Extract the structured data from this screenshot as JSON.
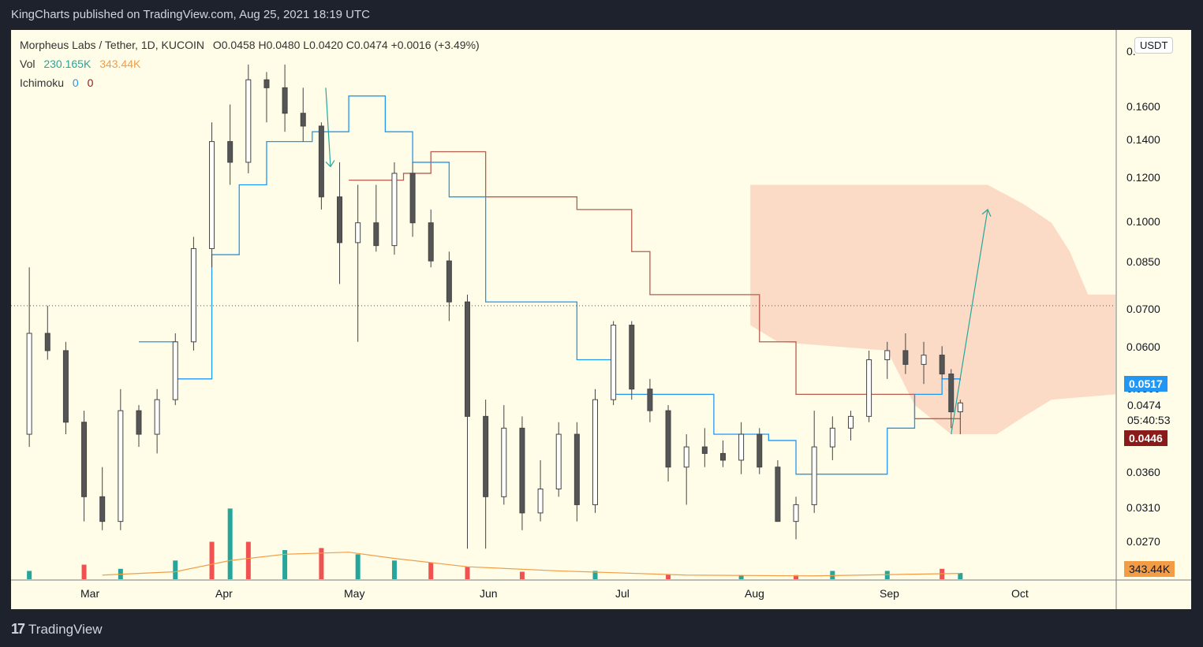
{
  "header": {
    "publisher": "KingCharts published on TradingView.com, Aug 25, 2021 18:19 UTC"
  },
  "legend": {
    "symbol": "Morpheus Labs / Tether, 1D, KUCOIN",
    "ohlc": "O0.0458 H0.0480 L0.0420 C0.0474 +0.0016 (+3.49%)",
    "vol_label": "Vol",
    "vol_value1": "230.165K",
    "vol_value2": "343.44K",
    "ichimoku_label": "Ichimoku",
    "ichimoku_value1": "0",
    "ichimoku_value2": "0"
  },
  "price_axis": {
    "currency": "USDT",
    "top_tick": "0.",
    "ticks": [
      "0.1600",
      "0.1400",
      "0.1200",
      "0.1000",
      "0.0850",
      "0.0700",
      "0.0600",
      "0.0500",
      "0.0360",
      "0.0310",
      "0.0270"
    ],
    "current_price_tag": "0.0517",
    "last_price": "0.0474",
    "countdown": "05:40:53",
    "kijun_tag": "0.0446",
    "volume_tag": "343.44K"
  },
  "time_axis": {
    "labels": [
      "Mar",
      "Apr",
      "May",
      "Jun",
      "Jul",
      "Aug",
      "Sep",
      "Oct"
    ]
  },
  "footer": {
    "brand_mark": "17",
    "brand": "TradingView"
  },
  "colors": {
    "background": "#fffde7",
    "up": "#ffffff",
    "down": "#555555",
    "vol_up": "#26a69a",
    "vol_down": "#ef5350",
    "tenkan": "#2196f3",
    "kijun": "#b85c50",
    "cloud": "#fbd5c0",
    "volume_ma": "#f39c46",
    "price_tag": "#2196f3",
    "kijun_tag": "#8b1a1a",
    "volume_tag": "#f39c46"
  },
  "chart_data": {
    "type": "candlestick",
    "title": "Morpheus Labs / Tether, 1D, KUCOIN",
    "scale": "log",
    "ylim": [
      0.024,
      0.2
    ],
    "x_range": [
      "2021-02-20",
      "2021-10-20"
    ],
    "candles": [
      {
        "date": "2021-02-24",
        "o": 0.042,
        "h": 0.08,
        "l": 0.04,
        "c": 0.062
      },
      {
        "date": "2021-02-28",
        "o": 0.062,
        "h": 0.069,
        "l": 0.056,
        "c": 0.058
      },
      {
        "date": "2021-03-04",
        "o": 0.058,
        "h": 0.06,
        "l": 0.042,
        "c": 0.044
      },
      {
        "date": "2021-03-08",
        "o": 0.044,
        "h": 0.046,
        "l": 0.03,
        "c": 0.033
      },
      {
        "date": "2021-03-12",
        "o": 0.033,
        "h": 0.037,
        "l": 0.029,
        "c": 0.03
      },
      {
        "date": "2021-03-16",
        "o": 0.03,
        "h": 0.05,
        "l": 0.029,
        "c": 0.046
      },
      {
        "date": "2021-03-20",
        "o": 0.046,
        "h": 0.047,
        "l": 0.04,
        "c": 0.042
      },
      {
        "date": "2021-03-24",
        "o": 0.042,
        "h": 0.05,
        "l": 0.039,
        "c": 0.048
      },
      {
        "date": "2021-03-28",
        "o": 0.048,
        "h": 0.062,
        "l": 0.047,
        "c": 0.06
      },
      {
        "date": "2021-04-01",
        "o": 0.06,
        "h": 0.09,
        "l": 0.058,
        "c": 0.086
      },
      {
        "date": "2021-04-05",
        "o": 0.086,
        "h": 0.14,
        "l": 0.08,
        "c": 0.13
      },
      {
        "date": "2021-04-09",
        "o": 0.13,
        "h": 0.15,
        "l": 0.11,
        "c": 0.12
      },
      {
        "date": "2021-04-13",
        "o": 0.12,
        "h": 0.175,
        "l": 0.115,
        "c": 0.165
      },
      {
        "date": "2021-04-17",
        "o": 0.165,
        "h": 0.17,
        "l": 0.14,
        "c": 0.16
      },
      {
        "date": "2021-04-21",
        "o": 0.16,
        "h": 0.175,
        "l": 0.135,
        "c": 0.145
      },
      {
        "date": "2021-04-25",
        "o": 0.145,
        "h": 0.16,
        "l": 0.13,
        "c": 0.138
      },
      {
        "date": "2021-04-29",
        "o": 0.138,
        "h": 0.14,
        "l": 0.1,
        "c": 0.105
      },
      {
        "date": "2021-05-03",
        "o": 0.105,
        "h": 0.12,
        "l": 0.075,
        "c": 0.088
      },
      {
        "date": "2021-05-07",
        "o": 0.088,
        "h": 0.11,
        "l": 0.06,
        "c": 0.095
      },
      {
        "date": "2021-05-11",
        "o": 0.095,
        "h": 0.11,
        "l": 0.085,
        "c": 0.087
      },
      {
        "date": "2021-05-15",
        "o": 0.087,
        "h": 0.12,
        "l": 0.084,
        "c": 0.115
      },
      {
        "date": "2021-05-19",
        "o": 0.115,
        "h": 0.12,
        "l": 0.09,
        "c": 0.095
      },
      {
        "date": "2021-05-23",
        "o": 0.095,
        "h": 0.1,
        "l": 0.08,
        "c": 0.082
      },
      {
        "date": "2021-05-27",
        "o": 0.082,
        "h": 0.085,
        "l": 0.065,
        "c": 0.07
      },
      {
        "date": "2021-05-31",
        "o": 0.07,
        "h": 0.072,
        "l": 0.027,
        "c": 0.045
      },
      {
        "date": "2021-06-04",
        "o": 0.045,
        "h": 0.048,
        "l": 0.027,
        "c": 0.033
      },
      {
        "date": "2021-06-08",
        "o": 0.033,
        "h": 0.047,
        "l": 0.032,
        "c": 0.043
      },
      {
        "date": "2021-06-12",
        "o": 0.043,
        "h": 0.045,
        "l": 0.029,
        "c": 0.031
      },
      {
        "date": "2021-06-16",
        "o": 0.031,
        "h": 0.038,
        "l": 0.03,
        "c": 0.034
      },
      {
        "date": "2021-06-20",
        "o": 0.034,
        "h": 0.044,
        "l": 0.033,
        "c": 0.042
      },
      {
        "date": "2021-06-24",
        "o": 0.042,
        "h": 0.044,
        "l": 0.03,
        "c": 0.032
      },
      {
        "date": "2021-06-28",
        "o": 0.032,
        "h": 0.05,
        "l": 0.031,
        "c": 0.048
      },
      {
        "date": "2021-07-02",
        "o": 0.048,
        "h": 0.065,
        "l": 0.047,
        "c": 0.064
      },
      {
        "date": "2021-07-06",
        "o": 0.064,
        "h": 0.065,
        "l": 0.048,
        "c": 0.05
      },
      {
        "date": "2021-07-10",
        "o": 0.05,
        "h": 0.052,
        "l": 0.044,
        "c": 0.046
      },
      {
        "date": "2021-07-14",
        "o": 0.046,
        "h": 0.047,
        "l": 0.035,
        "c": 0.037
      },
      {
        "date": "2021-07-18",
        "o": 0.037,
        "h": 0.042,
        "l": 0.032,
        "c": 0.04
      },
      {
        "date": "2021-07-22",
        "o": 0.04,
        "h": 0.043,
        "l": 0.037,
        "c": 0.039
      },
      {
        "date": "2021-07-26",
        "o": 0.039,
        "h": 0.041,
        "l": 0.037,
        "c": 0.038
      },
      {
        "date": "2021-07-30",
        "o": 0.038,
        "h": 0.044,
        "l": 0.036,
        "c": 0.042
      },
      {
        "date": "2021-08-03",
        "o": 0.042,
        "h": 0.043,
        "l": 0.036,
        "c": 0.037
      },
      {
        "date": "2021-08-07",
        "o": 0.037,
        "h": 0.038,
        "l": 0.03,
        "c": 0.03
      },
      {
        "date": "2021-08-11",
        "o": 0.03,
        "h": 0.033,
        "l": 0.028,
        "c": 0.032
      },
      {
        "date": "2021-08-15",
        "o": 0.032,
        "h": 0.046,
        "l": 0.031,
        "c": 0.04
      },
      {
        "date": "2021-08-19",
        "o": 0.04,
        "h": 0.045,
        "l": 0.038,
        "c": 0.043
      },
      {
        "date": "2021-08-23",
        "o": 0.043,
        "h": 0.046,
        "l": 0.041,
        "c": 0.045
      },
      {
        "date": "2021-08-27",
        "o": 0.045,
        "h": 0.058,
        "l": 0.044,
        "c": 0.056
      },
      {
        "date": "2021-08-31",
        "o": 0.056,
        "h": 0.06,
        "l": 0.052,
        "c": 0.058
      },
      {
        "date": "2021-09-04",
        "o": 0.058,
        "h": 0.062,
        "l": 0.053,
        "c": 0.055
      },
      {
        "date": "2021-09-08",
        "o": 0.055,
        "h": 0.06,
        "l": 0.051,
        "c": 0.057
      },
      {
        "date": "2021-09-12",
        "o": 0.057,
        "h": 0.059,
        "l": 0.052,
        "c": 0.053
      },
      {
        "date": "2021-09-14",
        "o": 0.053,
        "h": 0.054,
        "l": 0.043,
        "c": 0.0458
      },
      {
        "date": "2021-09-16",
        "o": 0.0458,
        "h": 0.048,
        "l": 0.042,
        "c": 0.0474
      }
    ],
    "tenkan": [
      {
        "date": "2021-03-20",
        "v": 0.06
      },
      {
        "date": "2021-03-28",
        "v": 0.052
      },
      {
        "date": "2021-04-05",
        "v": 0.084
      },
      {
        "date": "2021-04-11",
        "v": 0.11
      },
      {
        "date": "2021-04-17",
        "v": 0.13
      },
      {
        "date": "2021-04-27",
        "v": 0.135
      },
      {
        "date": "2021-05-05",
        "v": 0.155
      },
      {
        "date": "2021-05-13",
        "v": 0.135
      },
      {
        "date": "2021-05-19",
        "v": 0.12
      },
      {
        "date": "2021-05-27",
        "v": 0.105
      },
      {
        "date": "2021-06-04",
        "v": 0.07
      },
      {
        "date": "2021-06-16",
        "v": 0.07
      },
      {
        "date": "2021-06-24",
        "v": 0.056
      },
      {
        "date": "2021-07-02",
        "v": 0.049
      },
      {
        "date": "2021-07-14",
        "v": 0.049
      },
      {
        "date": "2021-07-24",
        "v": 0.042
      },
      {
        "date": "2021-08-05",
        "v": 0.041
      },
      {
        "date": "2021-08-11",
        "v": 0.036
      },
      {
        "date": "2021-08-23",
        "v": 0.036
      },
      {
        "date": "2021-08-31",
        "v": 0.043
      },
      {
        "date": "2021-09-06",
        "v": 0.049
      },
      {
        "date": "2021-09-12",
        "v": 0.052
      },
      {
        "date": "2021-09-16",
        "v": 0.0517
      }
    ],
    "kijun": [
      {
        "date": "2021-05-05",
        "v": 0.112
      },
      {
        "date": "2021-05-17",
        "v": 0.115
      },
      {
        "date": "2021-05-23",
        "v": 0.125
      },
      {
        "date": "2021-05-31",
        "v": 0.125
      },
      {
        "date": "2021-06-04",
        "v": 0.105
      },
      {
        "date": "2021-06-24",
        "v": 0.1
      },
      {
        "date": "2021-07-06",
        "v": 0.085
      },
      {
        "date": "2021-07-10",
        "v": 0.072
      },
      {
        "date": "2021-07-26",
        "v": 0.072
      },
      {
        "date": "2021-08-03",
        "v": 0.06
      },
      {
        "date": "2021-08-11",
        "v": 0.049
      },
      {
        "date": "2021-08-31",
        "v": 0.049
      },
      {
        "date": "2021-09-06",
        "v": 0.0446
      },
      {
        "date": "2021-09-16",
        "v": 0.0446
      }
    ],
    "cloud": {
      "top": [
        {
          "date": "2021-08-01",
          "v": 0.11
        },
        {
          "date": "2021-09-22",
          "v": 0.11
        },
        {
          "date": "2021-09-30",
          "v": 0.102
        },
        {
          "date": "2021-10-06",
          "v": 0.095
        },
        {
          "date": "2021-10-10",
          "v": 0.085
        },
        {
          "date": "2021-10-14",
          "v": 0.072
        },
        {
          "date": "2021-10-20",
          "v": 0.072
        }
      ],
      "bottom": [
        {
          "date": "2021-10-20",
          "v": 0.049
        },
        {
          "date": "2021-10-06",
          "v": 0.048
        },
        {
          "date": "2021-09-30",
          "v": 0.045
        },
        {
          "date": "2021-09-24",
          "v": 0.042
        },
        {
          "date": "2021-09-14",
          "v": 0.042
        },
        {
          "date": "2021-09-06",
          "v": 0.047
        },
        {
          "date": "2021-08-31",
          "v": 0.058
        },
        {
          "date": "2021-08-07",
          "v": 0.06
        },
        {
          "date": "2021-08-01",
          "v": 0.064
        }
      ]
    },
    "volume": [
      {
        "date": "2021-02-24",
        "v": 20,
        "up": true
      },
      {
        "date": "2021-03-08",
        "v": 35,
        "up": false
      },
      {
        "date": "2021-03-16",
        "v": 25,
        "up": true
      },
      {
        "date": "2021-03-28",
        "v": 45,
        "up": true
      },
      {
        "date": "2021-04-05",
        "v": 90,
        "up": false
      },
      {
        "date": "2021-04-09",
        "v": 170,
        "up": true
      },
      {
        "date": "2021-04-13",
        "v": 90,
        "up": false
      },
      {
        "date": "2021-04-21",
        "v": 70,
        "up": true
      },
      {
        "date": "2021-04-29",
        "v": 75,
        "up": false
      },
      {
        "date": "2021-05-07",
        "v": 60,
        "up": true
      },
      {
        "date": "2021-05-15",
        "v": 45,
        "up": true
      },
      {
        "date": "2021-05-23",
        "v": 40,
        "up": false
      },
      {
        "date": "2021-05-31",
        "v": 30,
        "up": false
      },
      {
        "date": "2021-06-12",
        "v": 18,
        "up": false
      },
      {
        "date": "2021-06-28",
        "v": 20,
        "up": true
      },
      {
        "date": "2021-07-14",
        "v": 12,
        "up": false
      },
      {
        "date": "2021-07-30",
        "v": 10,
        "up": true
      },
      {
        "date": "2021-08-11",
        "v": 10,
        "up": false
      },
      {
        "date": "2021-08-19",
        "v": 20,
        "up": true
      },
      {
        "date": "2021-08-31",
        "v": 20,
        "up": true
      },
      {
        "date": "2021-09-12",
        "v": 25,
        "up": false
      },
      {
        "date": "2021-09-16",
        "v": 15,
        "up": true
      }
    ],
    "volume_ma": [
      {
        "date": "2021-03-12",
        "v": 10
      },
      {
        "date": "2021-03-28",
        "v": 18
      },
      {
        "date": "2021-04-09",
        "v": 45
      },
      {
        "date": "2021-04-21",
        "v": 60
      },
      {
        "date": "2021-05-05",
        "v": 65
      },
      {
        "date": "2021-05-15",
        "v": 50
      },
      {
        "date": "2021-05-31",
        "v": 30
      },
      {
        "date": "2021-06-20",
        "v": 20
      },
      {
        "date": "2021-07-18",
        "v": 10
      },
      {
        "date": "2021-08-15",
        "v": 8
      },
      {
        "date": "2021-09-16",
        "v": 14
      }
    ],
    "volume_max": 180,
    "reference_price": 0.069,
    "arrow_down": {
      "date": "2021-05-01",
      "from": 0.16,
      "to": 0.118
    },
    "arrow_up": {
      "from_date": "2021-09-14",
      "from": 0.042,
      "to_date": "2021-09-22",
      "to": 0.1
    }
  }
}
